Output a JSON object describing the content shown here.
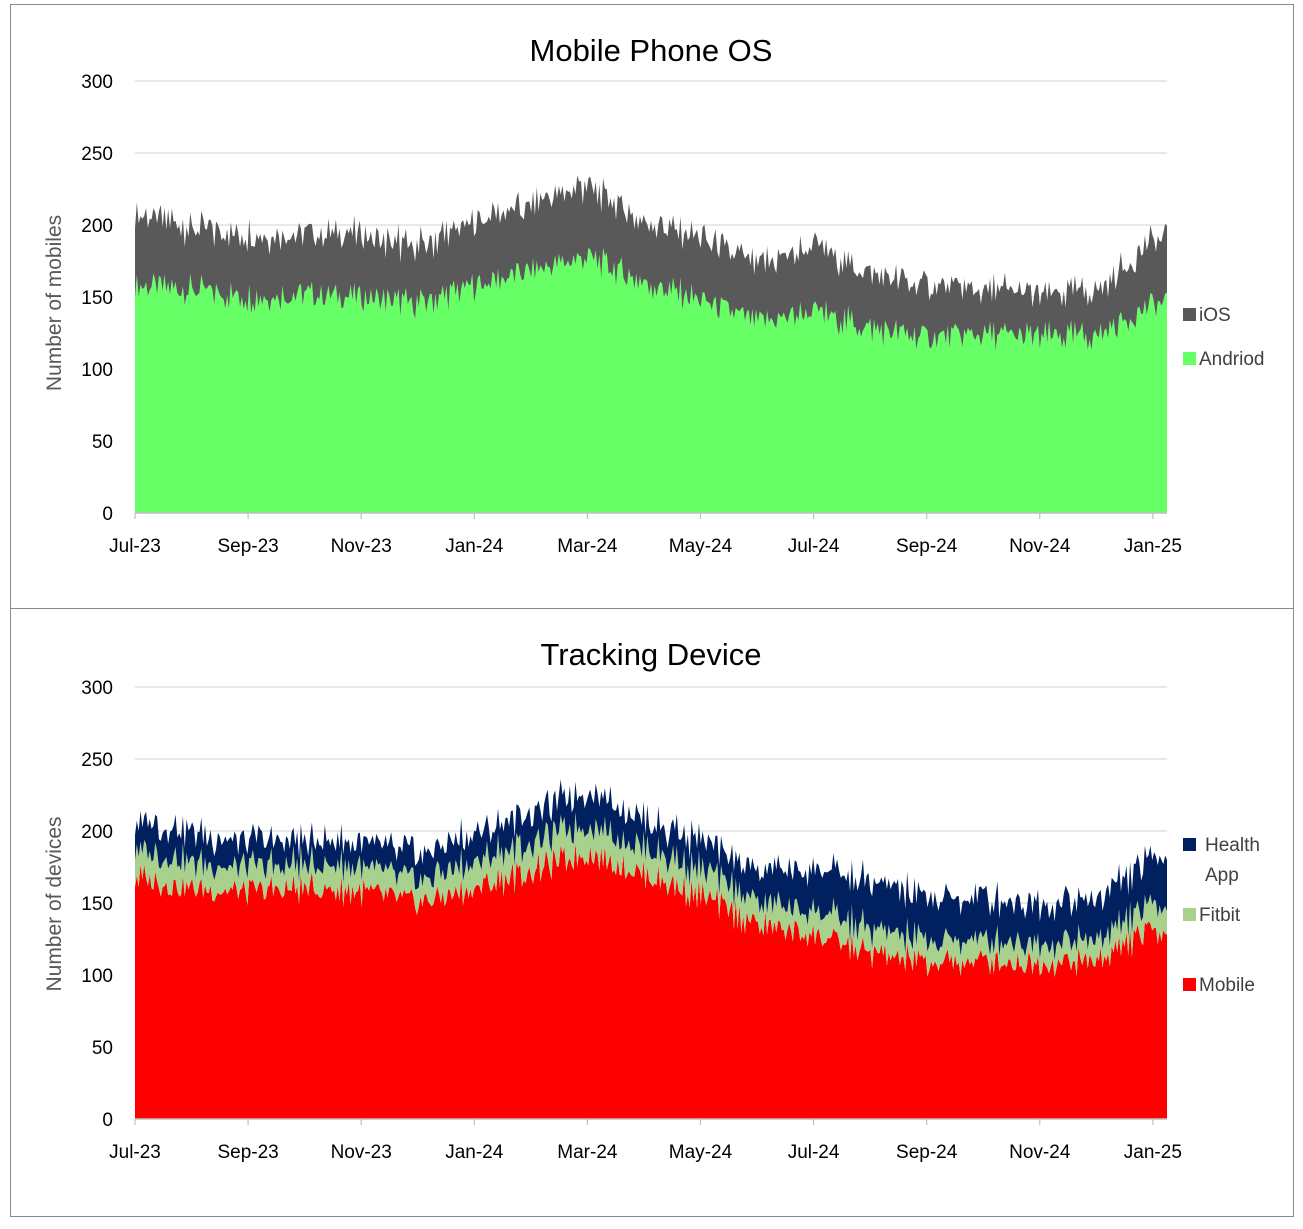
{
  "chart_data": [
    {
      "type": "area",
      "stacked": true,
      "title": "Mobile Phone OS",
      "ylabel": "Number of mobiles",
      "xlabel": "",
      "ylim": [
        0,
        300
      ],
      "yticks": [
        0,
        50,
        100,
        150,
        200,
        250,
        300
      ],
      "xticks": [
        "Jul-23",
        "Sep-23",
        "Nov-23",
        "Jan-24",
        "Mar-24",
        "May-24",
        "Jul-24",
        "Sep-24",
        "Nov-24",
        "Jan-25"
      ],
      "x": [
        "Jul-23",
        "Aug-23",
        "Sep-23",
        "Oct-23",
        "Nov-23",
        "Dec-23",
        "Jan-24",
        "Feb-24",
        "Mar-24",
        "Apr-24",
        "May-24",
        "Jun-24",
        "Jul-24",
        "Aug-24",
        "Sep-24",
        "Oct-24",
        "Nov-24",
        "Dec-24",
        "Jan-25"
      ],
      "grid": true,
      "legend_position": "right",
      "series": [
        {
          "name": "Andriod",
          "color": "#66ff66",
          "values": [
            158,
            155,
            150,
            152,
            150,
            145,
            158,
            168,
            178,
            160,
            148,
            132,
            140,
            128,
            122,
            124,
            122,
            123,
            145
          ]
        },
        {
          "name": "iOS",
          "color": "#595959",
          "values": [
            50,
            43,
            43,
            42,
            43,
            40,
            44,
            46,
            50,
            43,
            43,
            40,
            45,
            38,
            35,
            32,
            30,
            30,
            45
          ]
        }
      ]
    },
    {
      "type": "area",
      "stacked": true,
      "title": "Tracking Device",
      "ylabel": "Number of devices",
      "xlabel": "",
      "ylim": [
        0,
        300
      ],
      "yticks": [
        0,
        50,
        100,
        150,
        200,
        250,
        300
      ],
      "xticks": [
        "Jul-23",
        "Sep-23",
        "Nov-23",
        "Jan-24",
        "Mar-24",
        "May-24",
        "Jul-24",
        "Sep-24",
        "Nov-24",
        "Jan-25"
      ],
      "x": [
        "Jul-23",
        "Aug-23",
        "Sep-23",
        "Oct-23",
        "Nov-23",
        "Dec-23",
        "Jan-24",
        "Feb-24",
        "Mar-24",
        "Apr-24",
        "May-24",
        "Jun-24",
        "Jul-24",
        "Aug-24",
        "Sep-24",
        "Oct-24",
        "Nov-24",
        "Dec-24",
        "Jan-25"
      ],
      "grid": true,
      "legend_position": "right",
      "series": [
        {
          "name": "Mobile",
          "color": "#ff0000",
          "values": [
            168,
            160,
            158,
            160,
            158,
            150,
            160,
            172,
            185,
            170,
            155,
            135,
            128,
            115,
            108,
            110,
            108,
            110,
            132
          ]
        },
        {
          "name": "Fitbit",
          "color": "#a9d18e",
          "values": [
            20,
            18,
            17,
            17,
            17,
            15,
            18,
            20,
            20,
            19,
            18,
            17,
            17,
            16,
            15,
            15,
            15,
            15,
            17
          ]
        },
        {
          "name": "Health App",
          "color": "#002060",
          "values": [
            20,
            20,
            18,
            17,
            18,
            18,
            20,
            21,
            23,
            20,
            20,
            22,
            30,
            32,
            30,
            29,
            28,
            28,
            33
          ]
        }
      ]
    }
  ]
}
